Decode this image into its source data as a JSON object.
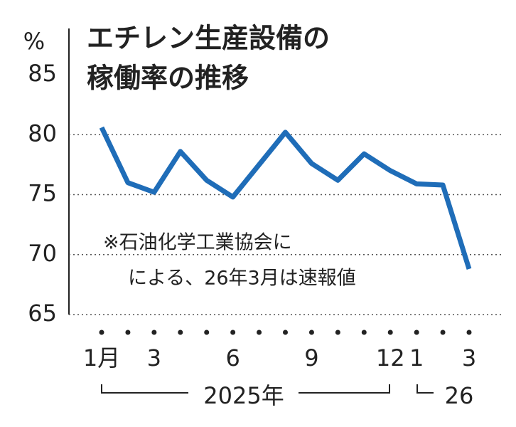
{
  "chart_data": {
    "type": "line",
    "title": [
      "エチレン生産設備の",
      "稼働率の推移"
    ],
    "y_unit": "%",
    "annotation": [
      "※石油化学工業協会に",
      "による、26年3月は速報値"
    ],
    "categories": [
      "1月",
      null,
      "3",
      null,
      null,
      "6",
      null,
      null,
      "9",
      null,
      null,
      "12",
      "1",
      null,
      "3"
    ],
    "year_labels": [
      "2025年",
      "26"
    ],
    "series": [
      {
        "name": "稼働率",
        "color": "#1f6db8",
        "values": [
          80.6,
          76.0,
          75.2,
          78.6,
          76.2,
          74.8,
          77.5,
          80.2,
          77.6,
          76.2,
          78.4,
          77.0,
          75.9,
          75.8,
          68.8
        ]
      }
    ],
    "ylim": [
      65,
      85
    ],
    "yticks": [
      65,
      70,
      75,
      80,
      85
    ],
    "grid": true
  }
}
